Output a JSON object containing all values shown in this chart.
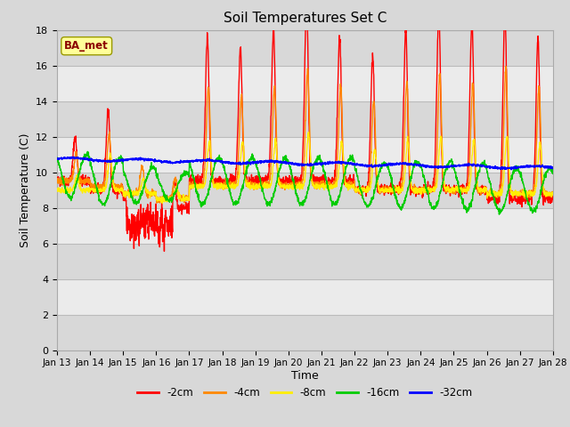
{
  "title": "Soil Temperatures Set C",
  "xlabel": "Time",
  "ylabel": "Soil Temperature (C)",
  "ylim": [
    0,
    18
  ],
  "x_tick_labels": [
    "Jan 13",
    "Jan 14",
    "Jan 15",
    "Jan 16",
    "Jan 17",
    "Jan 18",
    "Jan 19",
    "Jan 20",
    "Jan 21",
    "Jan 22",
    "Jan 23",
    "Jan 24",
    "Jan 25",
    "Jan 26",
    "Jan 27",
    "Jan 28"
  ],
  "annotation": "BA_met",
  "bg_color": "#e8e8e8",
  "grid_color": "#ffffff",
  "series": [
    {
      "label": "-2cm",
      "color": "#ff0000",
      "lw": 1.0
    },
    {
      "label": "-4cm",
      "color": "#ff8800",
      "lw": 1.0
    },
    {
      "label": "-8cm",
      "color": "#ffee00",
      "lw": 1.0
    },
    {
      "label": "-16cm",
      "color": "#00cc00",
      "lw": 1.0
    },
    {
      "label": "-32cm",
      "color": "#0000ff",
      "lw": 1.2
    }
  ]
}
